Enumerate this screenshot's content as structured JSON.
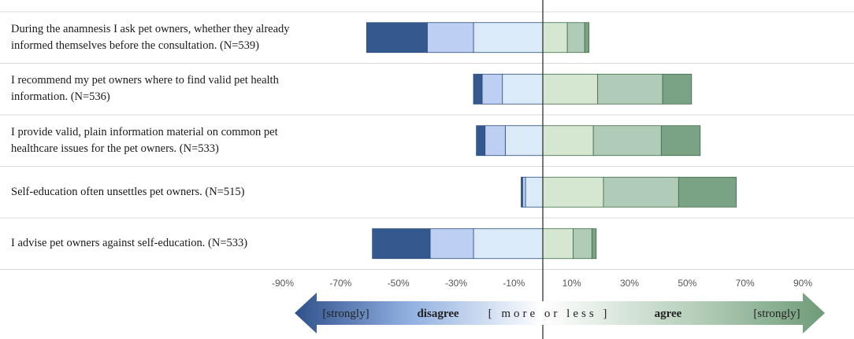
{
  "chart_data": {
    "type": "bar",
    "orientation": "horizontal",
    "stacked": "diverging",
    "categories": [
      "During the anamnesis I ask pet owners, whether they already informed themselves before the consultation. (N=539)",
      "I recommend my pet owners where to find valid pet health information. (N=536)",
      "I provide valid, plain information material on common pet healthcare issues for the pet owners. (N=533)",
      "Self-education often unsettles pet owners. (N=515)",
      "I advise pet owners against self-education. (N=533)"
    ],
    "series": [
      {
        "values": [
          -21,
          -3,
          -3,
          -0.5,
          -20
        ],
        "color": "#33598f"
      },
      {
        "values": [
          -16,
          -7,
          -7,
          -1,
          -15
        ],
        "color": "#bdd0f4"
      },
      {
        "values": [
          -24,
          -14,
          -13,
          -6,
          -24
        ],
        "color": "#daeaf9"
      },
      {
        "values": [
          8.5,
          19,
          17.5,
          21,
          10.5
        ],
        "color": "#d5e7d1"
      },
      {
        "values": [
          6,
          22.5,
          23.5,
          26,
          6.5
        ],
        "color": "#b0cbb8"
      },
      {
        "values": [
          1.5,
          10,
          13.5,
          20,
          1.5
        ],
        "color": "#7aa284"
      }
    ],
    "xlim": [
      -90,
      90
    ],
    "xticks": [
      "-90%",
      "-70%",
      "-50%",
      "-30%",
      "-10%",
      "10%",
      "30%",
      "50%",
      "70%",
      "90%"
    ],
    "xtick_values": [
      -90,
      -70,
      -50,
      -30,
      -10,
      10,
      30,
      50,
      70,
      90
    ]
  },
  "legend_arrow": {
    "left_strongly": "[strongly]",
    "disagree": "disagree",
    "more_or_less": "[ more or less ]",
    "agree": "agree",
    "right_strongly": "[strongly]"
  }
}
